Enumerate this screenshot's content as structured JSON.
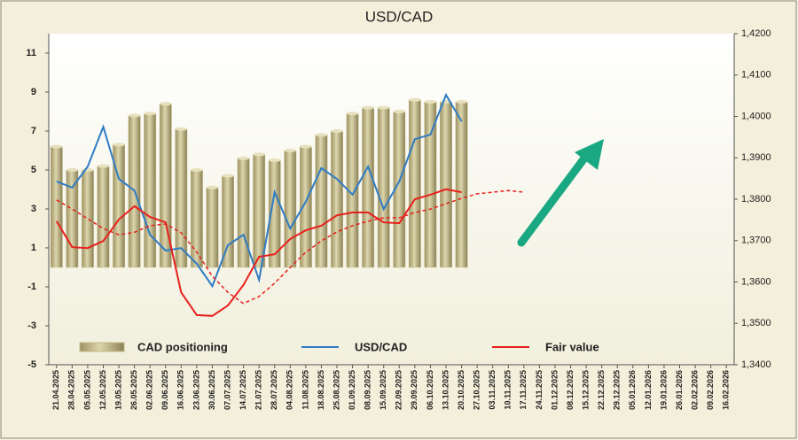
{
  "chart_data": {
    "type": "bar-line",
    "title": "USD/CAD",
    "categories": [
      "21.04.2025",
      "28.04.2025",
      "05.05.2025",
      "12.05.2025",
      "19.05.2025",
      "26.05.2025",
      "02.06.2025",
      "09.06.2025",
      "16.06.2025",
      "23.06.2025",
      "30.06.2025",
      "07.07.2025",
      "14.07.2025",
      "21.07.2025",
      "28.07.2025",
      "04.08.2025",
      "11.08.2025",
      "18.08.2025",
      "25.08.2025",
      "01.09.2025",
      "08.09.2025",
      "15.09.2025",
      "22.09.2025",
      "29.09.2025",
      "06.10.2025",
      "13.10.2025",
      "20.10.2025",
      "27.10.2025",
      "03.11.2025",
      "10.11.2025",
      "17.11.2025",
      "24.11.2025",
      "01.12.2025",
      "08.12.2025",
      "15.12.2025",
      "22.12.2025",
      "29.12.2025",
      "05.01.2026",
      "12.01.2026",
      "19.01.2026",
      "26.01.2026",
      "02.02.2026",
      "09.02.2026",
      "16.02.2026"
    ],
    "series": [
      {
        "name": "CAD positioning",
        "kind": "bar",
        "axis": "y",
        "color": "#c4ba86",
        "values": [
          6.2,
          5.0,
          5.0,
          5.2,
          6.3,
          7.8,
          7.9,
          8.4,
          7.1,
          5.0,
          4.1,
          4.7,
          5.6,
          5.8,
          5.5,
          6.0,
          6.2,
          6.8,
          7.0,
          7.9,
          8.2,
          8.2,
          8.0,
          8.6,
          8.5,
          8.5,
          8.5,
          null,
          null,
          null,
          null,
          null,
          null,
          null,
          null,
          null,
          null,
          null,
          null,
          null,
          null,
          null,
          null,
          null
        ]
      },
      {
        "name": "USD/CAD",
        "kind": "line",
        "axis": "y2",
        "color": "#2f7cc4",
        "values": [
          1.3843,
          1.3828,
          1.3879,
          1.3975,
          1.3849,
          1.3821,
          1.3714,
          1.3676,
          1.3682,
          1.3644,
          1.359,
          1.3689,
          1.3714,
          1.3605,
          1.3817,
          1.3729,
          1.3794,
          1.3875,
          1.3849,
          1.3811,
          1.3879,
          1.3776,
          1.3843,
          1.3945,
          1.3956,
          1.4052,
          1.3988,
          null,
          null,
          null,
          null,
          null,
          null,
          null,
          null,
          null,
          null,
          null,
          null,
          null,
          null,
          null,
          null,
          null
        ]
      },
      {
        "name": "Fair value",
        "kind": "line",
        "axis": "y2",
        "color": "#e8201c",
        "values": [
          1.3747,
          1.3684,
          1.3682,
          1.3699,
          1.3751,
          1.3783,
          1.3757,
          1.3744,
          1.3575,
          1.352,
          1.3518,
          1.3543,
          1.3593,
          1.3661,
          1.3667,
          1.3704,
          1.3725,
          1.3736,
          1.3761,
          1.3768,
          1.3768,
          1.3744,
          1.3742,
          1.38,
          1.3811,
          1.3824,
          1.3817,
          null,
          null,
          null,
          null,
          null,
          null,
          null,
          null,
          null,
          null,
          null,
          null,
          null,
          null,
          null,
          null,
          null
        ]
      },
      {
        "kind": "line",
        "dashed": true,
        "axis": "y2",
        "color": "#e8201c",
        "values": [
          1.3798,
          1.3776,
          1.3753,
          1.3729,
          1.3714,
          1.372,
          1.3736,
          1.374,
          1.3719,
          1.3672,
          1.3614,
          1.3575,
          1.3548,
          1.3565,
          1.3597,
          1.3635,
          1.3672,
          1.3699,
          1.3721,
          1.3736,
          1.3747,
          1.3755,
          1.3755,
          1.3768,
          1.3776,
          1.3789,
          1.3802,
          1.3813,
          1.3817,
          1.3821,
          1.3817,
          null,
          null,
          null,
          null,
          null,
          null,
          null,
          null,
          null,
          null,
          null,
          null,
          null
        ]
      }
    ],
    "ylim": [
      -5,
      12
    ],
    "yticks": [
      -5,
      -3,
      -1,
      1,
      3,
      5,
      7,
      9,
      11
    ],
    "y2lim": [
      1.34,
      1.42
    ],
    "y2ticks": [
      {
        "value": 1.34,
        "label": "1,3400"
      },
      {
        "value": 1.35,
        "label": "1,3500"
      },
      {
        "value": 1.36,
        "label": "1,3600"
      },
      {
        "value": 1.37,
        "label": "1,3700"
      },
      {
        "value": 1.38,
        "label": "1,3800"
      },
      {
        "value": 1.39,
        "label": "1,3900"
      },
      {
        "value": 1.4,
        "label": "1,4000"
      },
      {
        "value": 1.41,
        "label": "1,4100"
      },
      {
        "value": 1.42,
        "label": "1,4200"
      }
    ],
    "grid": false
  }
}
